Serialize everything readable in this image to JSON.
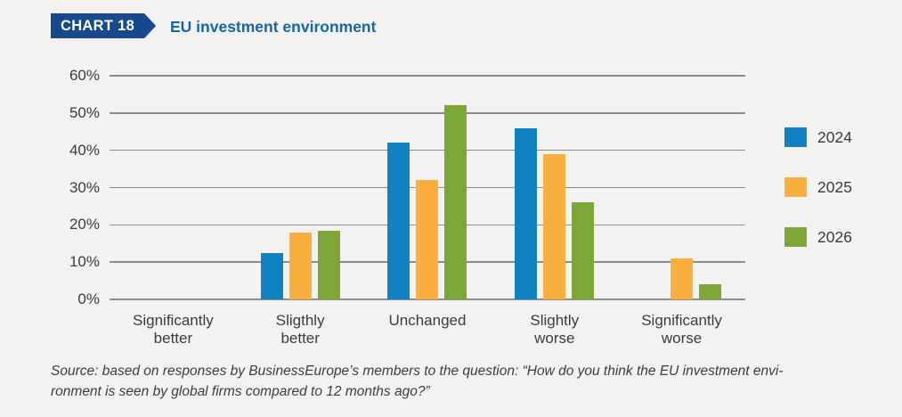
{
  "header": {
    "badge": "CHART 18",
    "title": "EU investment environment"
  },
  "chart_data": {
    "type": "bar",
    "categories": [
      "Significantly\nbetter",
      "Sligthly\nbetter",
      "Unchanged",
      "Slightly\nworse",
      "Significantly\nworse"
    ],
    "series": [
      {
        "name": "2024",
        "color": "#1082c2",
        "values": [
          0,
          12.5,
          42,
          46,
          0
        ]
      },
      {
        "name": "2025",
        "color": "#f9b03f",
        "values": [
          0,
          18,
          32,
          39,
          11
        ]
      },
      {
        "name": "2026",
        "color": "#7ca637",
        "values": [
          0,
          18.5,
          52,
          26,
          4
        ]
      }
    ],
    "title": "EU investment environment",
    "xlabel": "",
    "ylabel": "",
    "ylim": [
      0,
      60
    ],
    "yticks": [
      0,
      10,
      20,
      30,
      40,
      50,
      60
    ],
    "ytick_suffix": "%",
    "grid": true,
    "legend_position": "right"
  },
  "source": {
    "line1": "Source: based on responses by BusinessEurope’s members to the question: “How do you think the EU investment envi-",
    "line2": "ronment is seen by global firms compared to 12 months ago?”"
  },
  "colors": {
    "background": "#f3f2f0",
    "badge": "#17498f",
    "title_text": "#1565a8",
    "gridline": "#8a8a8a",
    "axis_text": "#3c3c3c",
    "source_text": "#3d3d3d"
  }
}
